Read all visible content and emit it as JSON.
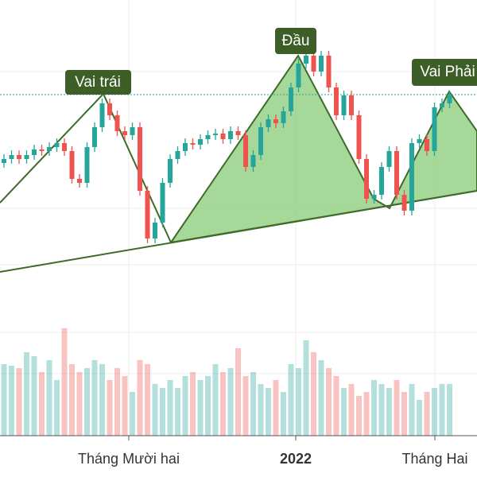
{
  "chart_data": {
    "type": "candlestick",
    "annotations": [
      "Vai trái",
      "Đầu",
      "Vai Phải"
    ],
    "xlabels": [
      "Tháng Mười hai",
      "2022",
      "Tháng Hai"
    ],
    "up_color": "#26a69a",
    "down_color": "#ef5350",
    "ylim": [
      0,
      400
    ],
    "volume_ylim": [
      0,
      150
    ],
    "open": [
      195,
      200,
      205,
      200,
      205,
      212,
      210,
      215,
      220,
      210,
      175,
      170,
      215,
      240,
      270,
      255,
      235,
      230,
      240,
      160,
      100,
      120,
      170,
      200,
      210,
      220,
      218,
      225,
      230,
      232,
      225,
      235,
      230,
      190,
      205,
      240,
      250,
      245,
      260,
      290,
      320,
      330,
      310,
      330,
      290,
      255,
      280,
      255,
      200,
      150,
      155,
      190,
      210,
      155,
      135,
      220,
      225,
      210,
      265,
      270
    ],
    "high": [
      206,
      211,
      211,
      211,
      218,
      218,
      221,
      226,
      226,
      216,
      181,
      221,
      246,
      276,
      276,
      261,
      241,
      246,
      246,
      166,
      126,
      176,
      206,
      216,
      226,
      226,
      231,
      236,
      238,
      238,
      241,
      241,
      236,
      211,
      246,
      256,
      256,
      266,
      296,
      326,
      336,
      336,
      336,
      336,
      296,
      286,
      286,
      261,
      206,
      161,
      196,
      216,
      216,
      161,
      226,
      231,
      231,
      271,
      276,
      286
    ],
    "low": [
      189,
      194,
      194,
      194,
      199,
      204,
      204,
      209,
      204,
      169,
      164,
      164,
      209,
      234,
      249,
      229,
      224,
      224,
      154,
      94,
      94,
      114,
      164,
      194,
      204,
      212,
      212,
      219,
      224,
      219,
      219,
      224,
      184,
      184,
      199,
      234,
      239,
      239,
      254,
      284,
      314,
      304,
      304,
      284,
      249,
      249,
      249,
      194,
      144,
      144,
      149,
      184,
      149,
      129,
      129,
      214,
      204,
      204,
      259,
      264
    ],
    "close": [
      200,
      205,
      200,
      205,
      212,
      210,
      215,
      220,
      210,
      175,
      170,
      215,
      240,
      270,
      255,
      235,
      230,
      240,
      160,
      100,
      120,
      170,
      200,
      210,
      220,
      218,
      225,
      230,
      232,
      225,
      235,
      230,
      190,
      205,
      240,
      250,
      245,
      260,
      290,
      320,
      330,
      310,
      330,
      290,
      255,
      280,
      255,
      200,
      150,
      155,
      190,
      210,
      155,
      135,
      220,
      225,
      210,
      265,
      270,
      280
    ],
    "volume": [
      90,
      88,
      85,
      105,
      100,
      80,
      95,
      70,
      135,
      90,
      80,
      85,
      95,
      90,
      70,
      85,
      75,
      55,
      95,
      90,
      65,
      60,
      70,
      60,
      75,
      80,
      70,
      75,
      90,
      80,
      85,
      110,
      75,
      80,
      65,
      60,
      70,
      55,
      90,
      85,
      120,
      105,
      95,
      85,
      75,
      60,
      65,
      50,
      55,
      70,
      65,
      60,
      70,
      55,
      65,
      45,
      55,
      60,
      65,
      65
    ]
  }
}
